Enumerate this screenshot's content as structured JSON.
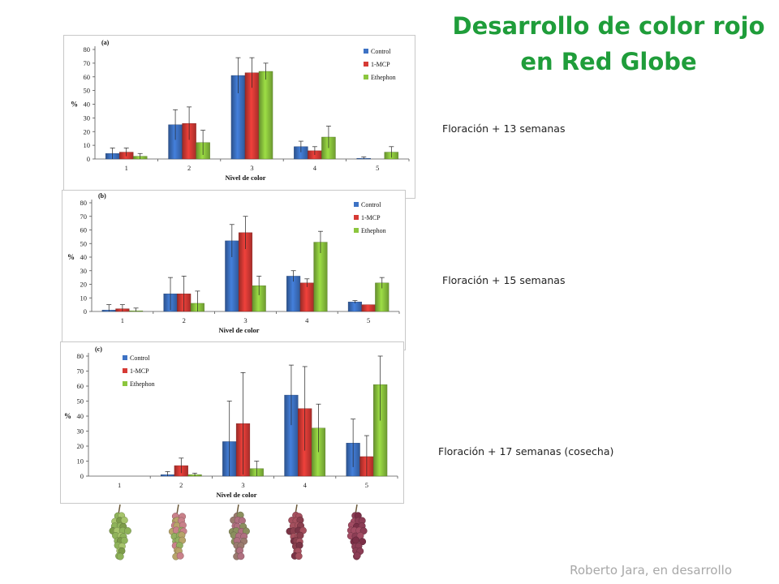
{
  "title_line1": "Desarrollo de color rojo",
  "title_line2": "en Red Globe",
  "credit": "Roberto Jara, en desarrollo",
  "colors": {
    "title": "#1f9d3a",
    "control": "#3d72c4",
    "mcp": "#d63a35",
    "ethephon": "#8cc63e"
  },
  "grape_icons": [
    "green-grape-cluster-icon",
    "green-pink-grape-cluster-icon",
    "pinkish-grape-cluster-icon",
    "red-grape-cluster-icon",
    "deep-red-grape-cluster-icon"
  ],
  "chart_data": [
    {
      "type": "bar",
      "panel_label": "(a)",
      "caption": "Floración + 13 semanas",
      "categories": [
        "1",
        "2",
        "3",
        "4",
        "5"
      ],
      "xlabel": "Nivel de color",
      "ylabel": "%",
      "ylim": [
        0,
        80
      ],
      "yticks": [
        0,
        10,
        20,
        30,
        40,
        50,
        60,
        70,
        80
      ],
      "legend_position": "top-right",
      "series": [
        {
          "name": "Control",
          "values": [
            4,
            25,
            61,
            9,
            0.5
          ],
          "errors": [
            4,
            11,
            13,
            4,
            1
          ]
        },
        {
          "name": "1-MCP",
          "values": [
            5,
            26,
            63,
            6,
            0
          ],
          "errors": [
            3,
            12,
            11,
            3,
            0
          ]
        },
        {
          "name": "Ethephon",
          "values": [
            2,
            12,
            64,
            16,
            5
          ],
          "errors": [
            2,
            9,
            6,
            8,
            4
          ]
        }
      ]
    },
    {
      "type": "bar",
      "panel_label": "(b)",
      "caption": "Floración + 15 semanas",
      "categories": [
        "1",
        "2",
        "3",
        "4",
        "5"
      ],
      "xlabel": "Nivel de color",
      "ylabel": "%",
      "ylim": [
        0,
        80
      ],
      "yticks": [
        0,
        10,
        20,
        30,
        40,
        50,
        60,
        70,
        80
      ],
      "legend_position": "top-right",
      "series": [
        {
          "name": "Control",
          "values": [
            1,
            13,
            52,
            26,
            7
          ],
          "errors": [
            4,
            12,
            12,
            4,
            1
          ]
        },
        {
          "name": "1-MCP",
          "values": [
            2,
            13,
            58,
            21,
            5
          ],
          "errors": [
            3,
            13,
            12,
            3,
            0
          ]
        },
        {
          "name": "Ethephon",
          "values": [
            0.5,
            6,
            19,
            51,
            21
          ],
          "errors": [
            2,
            9,
            7,
            8,
            4
          ]
        }
      ]
    },
    {
      "type": "bar",
      "panel_label": "(c)",
      "caption": "Floración + 17 semanas (cosecha)",
      "categories": [
        "1",
        "2",
        "3",
        "4",
        "5"
      ],
      "xlabel": "Nivel de color",
      "ylabel": "%",
      "ylim": [
        0,
        80
      ],
      "yticks": [
        0,
        10,
        20,
        30,
        40,
        50,
        60,
        70,
        80
      ],
      "legend_position": "top-left",
      "series": [
        {
          "name": "Control",
          "values": [
            0,
            1,
            23,
            54,
            22
          ],
          "errors": [
            0,
            2,
            27,
            20,
            16
          ]
        },
        {
          "name": "1-MCP",
          "values": [
            0,
            7,
            35,
            45,
            13
          ],
          "errors": [
            0,
            5,
            34,
            28,
            14
          ]
        },
        {
          "name": "Ethephon",
          "values": [
            0,
            1,
            5,
            32,
            61
          ],
          "errors": [
            0,
            1,
            5,
            16,
            24
          ]
        }
      ]
    }
  ]
}
